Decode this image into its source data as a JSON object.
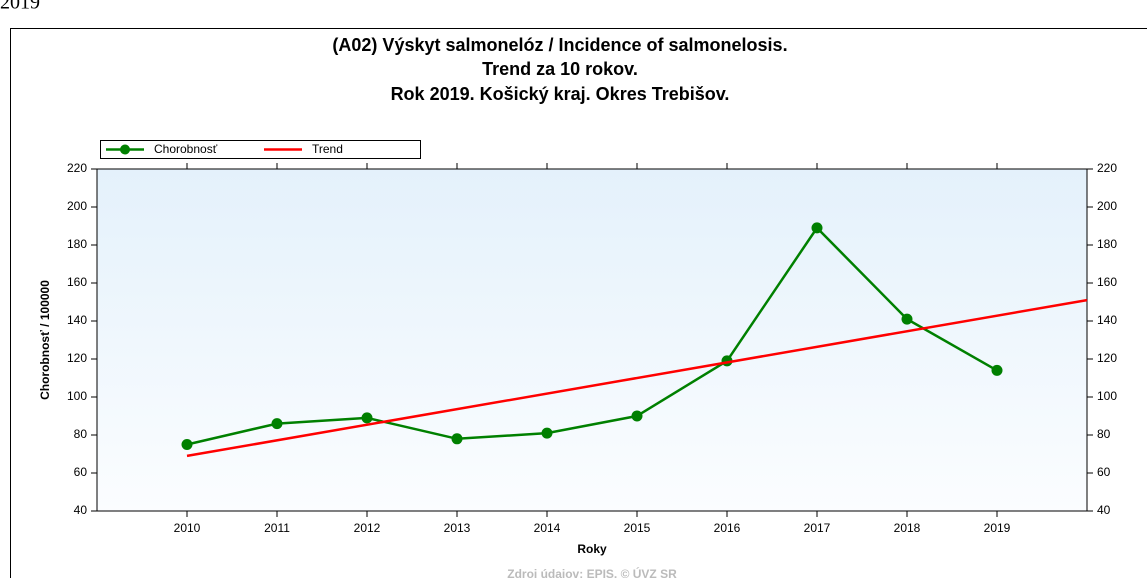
{
  "page_label": "2019",
  "chart_data": {
    "type": "line",
    "title": [
      "(A02) Výskyt salmonelóz / Incidence of salmonelosis.",
      "Trend za 10 rokov.",
      "Rok 2019. Košický kraj. Okres Trebišov."
    ],
    "ylabel": "Chorobnosť / 100000",
    "xlabel": "Roky",
    "source": "Zdroj údajov: EPIS, © ÚVZ SR",
    "x": [
      2010,
      2011,
      2012,
      2013,
      2014,
      2015,
      2016,
      2017,
      2018,
      2019
    ],
    "xlim": [
      2009,
      2020
    ],
    "xticks": [
      2010,
      2011,
      2012,
      2013,
      2014,
      2015,
      2016,
      2017,
      2018,
      2019
    ],
    "ylim": [
      40,
      220
    ],
    "yticks": [
      40,
      60,
      80,
      100,
      120,
      140,
      160,
      180,
      200,
      220
    ],
    "legend": "top-left",
    "series": [
      {
        "name": "Chorobnosť",
        "color": "#008000",
        "markers": true,
        "values": [
          75,
          86,
          89,
          78,
          81,
          90,
          119,
          189,
          141,
          114
        ]
      },
      {
        "name": "Trend",
        "color": "#ff0000",
        "markers": false,
        "x": [
          2010,
          2020
        ],
        "values": [
          69,
          151
        ]
      }
    ]
  }
}
